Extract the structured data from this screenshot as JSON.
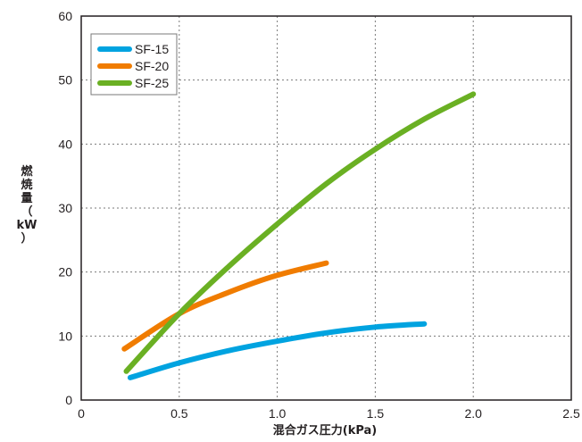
{
  "chart_data": {
    "type": "line",
    "xlabel": "混合ガス圧力(kPa)",
    "ylabel_chars": [
      "燃",
      "焼",
      "量",
      "（",
      "kW",
      "）"
    ],
    "xlim": [
      0,
      2.5
    ],
    "ylim": [
      0,
      60
    ],
    "x_ticks": [
      "0",
      "0.5",
      "1.0",
      "1.5",
      "2.0",
      "2.5"
    ],
    "y_ticks": [
      "0",
      "10",
      "20",
      "30",
      "40",
      "50",
      "60"
    ],
    "grid": true,
    "legend_position": "top-left",
    "series": [
      {
        "name": "SF-15",
        "color": "#00a3e0",
        "x": [
          0.25,
          0.5,
          0.75,
          1.0,
          1.25,
          1.5,
          1.75
        ],
        "y": [
          3.5,
          5.8,
          7.7,
          9.2,
          10.5,
          11.4,
          11.9
        ]
      },
      {
        "name": "SF-20",
        "color": "#f07c00",
        "x": [
          0.22,
          0.5,
          0.75,
          1.0,
          1.25
        ],
        "y": [
          8.0,
          13.5,
          16.8,
          19.5,
          21.4
        ]
      },
      {
        "name": "SF-25",
        "color": "#6ab023",
        "x": [
          0.23,
          0.5,
          0.75,
          1.0,
          1.25,
          1.5,
          1.75,
          2.0
        ],
        "y": [
          4.5,
          13.5,
          20.8,
          27.5,
          33.8,
          39.2,
          43.9,
          47.8
        ]
      }
    ]
  }
}
